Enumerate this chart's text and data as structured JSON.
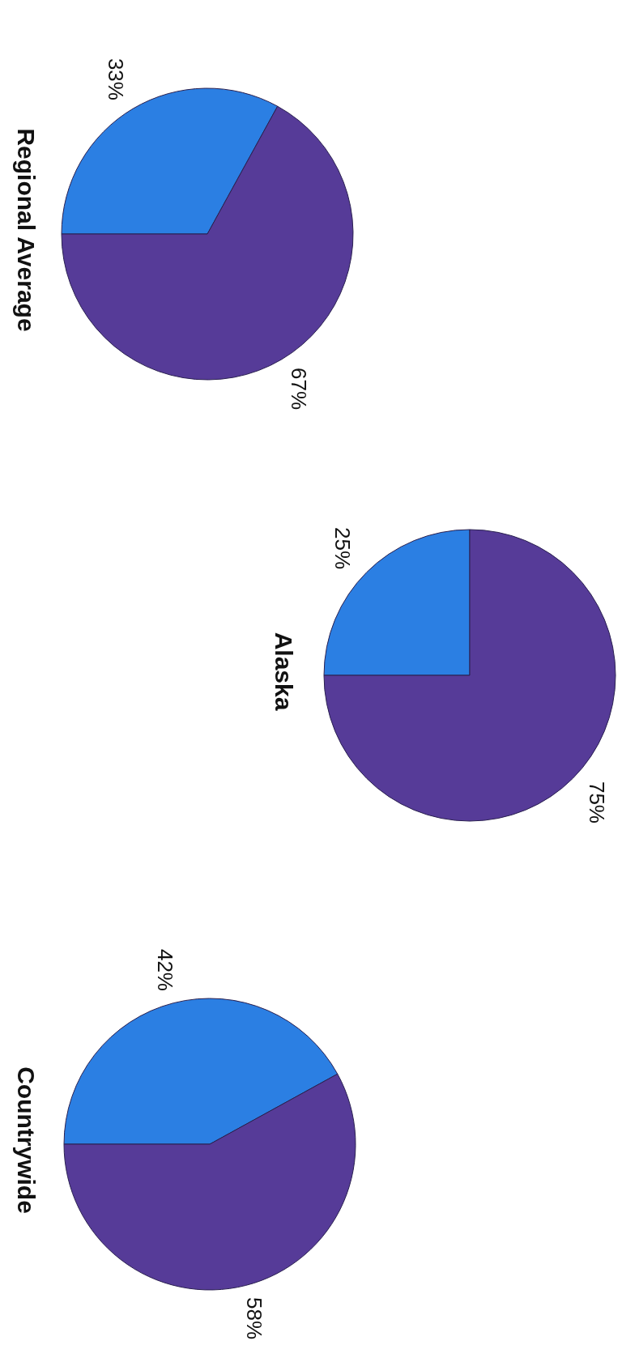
{
  "chart_data": [
    {
      "type": "pie",
      "title": "Regional Average",
      "categories": [
        null,
        null
      ],
      "values": [
        33,
        67
      ],
      "value_labels": [
        "33%",
        "67%"
      ],
      "colors": [
        "#2b7fe3",
        "#563b98"
      ],
      "legend": false
    },
    {
      "type": "pie",
      "title": "Alaska",
      "categories": [
        null,
        null
      ],
      "values": [
        25,
        75
      ],
      "value_labels": [
        "25%",
        "75%"
      ],
      "colors": [
        "#2b7fe3",
        "#563b98"
      ],
      "legend": false
    },
    {
      "type": "pie",
      "title": "Countrywide",
      "categories": [
        null,
        null
      ],
      "values": [
        42,
        58
      ],
      "value_labels": [
        "42%",
        "58%"
      ],
      "colors": [
        "#2b7fe3",
        "#563b98"
      ],
      "legend": false
    }
  ]
}
